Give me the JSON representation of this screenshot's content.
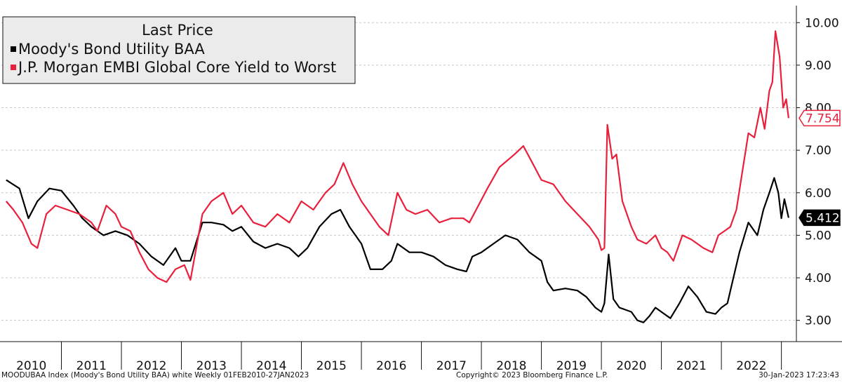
{
  "chart_data": {
    "type": "line",
    "title": "",
    "legend": {
      "title": "Last Price",
      "placement": "top-left"
    },
    "xlabel": "",
    "ylabel": "",
    "ylim": [
      2.5,
      10.4
    ],
    "yticks": [
      "3.00",
      "4.00",
      "5.00",
      "6.00",
      "7.00",
      "8.00",
      "9.00",
      "10.00"
    ],
    "xticks": [
      "2010",
      "2011",
      "2012",
      "2013",
      "2014",
      "2015",
      "2016",
      "2017",
      "2018",
      "2019",
      "2020",
      "2021",
      "2022"
    ],
    "xlim": [
      2010.0,
      2023.25
    ],
    "grid": "horizontal dashed",
    "series": [
      {
        "name": "Moody's Bond Utility BAA",
        "color": "#000000",
        "last_value": "5.412",
        "points": [
          [
            2010.08,
            6.3
          ],
          [
            2010.3,
            6.1
          ],
          [
            2010.45,
            5.4
          ],
          [
            2010.6,
            5.8
          ],
          [
            2010.8,
            6.1
          ],
          [
            2011.0,
            6.05
          ],
          [
            2011.2,
            5.7
          ],
          [
            2011.35,
            5.4
          ],
          [
            2011.5,
            5.2
          ],
          [
            2011.7,
            5.0
          ],
          [
            2011.9,
            5.1
          ],
          [
            2012.1,
            5.0
          ],
          [
            2012.3,
            4.8
          ],
          [
            2012.5,
            4.5
          ],
          [
            2012.7,
            4.3
          ],
          [
            2012.9,
            4.7
          ],
          [
            2013.0,
            4.4
          ],
          [
            2013.15,
            4.4
          ],
          [
            2013.35,
            5.3
          ],
          [
            2013.5,
            5.3
          ],
          [
            2013.7,
            5.25
          ],
          [
            2013.85,
            5.1
          ],
          [
            2014.0,
            5.2
          ],
          [
            2014.2,
            4.85
          ],
          [
            2014.4,
            4.7
          ],
          [
            2014.6,
            4.8
          ],
          [
            2014.8,
            4.7
          ],
          [
            2014.95,
            4.5
          ],
          [
            2015.1,
            4.7
          ],
          [
            2015.3,
            5.2
          ],
          [
            2015.5,
            5.5
          ],
          [
            2015.65,
            5.6
          ],
          [
            2015.8,
            5.2
          ],
          [
            2016.0,
            4.8
          ],
          [
            2016.15,
            4.2
          ],
          [
            2016.35,
            4.2
          ],
          [
            2016.5,
            4.4
          ],
          [
            2016.6,
            4.8
          ],
          [
            2016.8,
            4.6
          ],
          [
            2017.0,
            4.6
          ],
          [
            2017.2,
            4.5
          ],
          [
            2017.4,
            4.3
          ],
          [
            2017.6,
            4.2
          ],
          [
            2017.75,
            4.15
          ],
          [
            2017.85,
            4.5
          ],
          [
            2018.0,
            4.6
          ],
          [
            2018.2,
            4.8
          ],
          [
            2018.4,
            5.0
          ],
          [
            2018.6,
            4.9
          ],
          [
            2018.8,
            4.6
          ],
          [
            2019.0,
            4.4
          ],
          [
            2019.1,
            3.9
          ],
          [
            2019.2,
            3.7
          ],
          [
            2019.4,
            3.75
          ],
          [
            2019.6,
            3.7
          ],
          [
            2019.75,
            3.55
          ],
          [
            2019.9,
            3.3
          ],
          [
            2020.0,
            3.2
          ],
          [
            2020.05,
            3.4
          ],
          [
            2020.12,
            4.55
          ],
          [
            2020.2,
            3.5
          ],
          [
            2020.3,
            3.3
          ],
          [
            2020.5,
            3.2
          ],
          [
            2020.6,
            3.0
          ],
          [
            2020.7,
            2.95
          ],
          [
            2020.8,
            3.1
          ],
          [
            2020.9,
            3.3
          ],
          [
            2021.0,
            3.2
          ],
          [
            2021.15,
            3.05
          ],
          [
            2021.3,
            3.4
          ],
          [
            2021.45,
            3.8
          ],
          [
            2021.6,
            3.55
          ],
          [
            2021.75,
            3.2
          ],
          [
            2021.9,
            3.15
          ],
          [
            2022.0,
            3.3
          ],
          [
            2022.1,
            3.4
          ],
          [
            2022.2,
            4.0
          ],
          [
            2022.3,
            4.6
          ],
          [
            2022.45,
            5.3
          ],
          [
            2022.6,
            5.0
          ],
          [
            2022.7,
            5.6
          ],
          [
            2022.8,
            6.0
          ],
          [
            2022.88,
            6.35
          ],
          [
            2022.95,
            6.0
          ],
          [
            2023.0,
            5.4
          ],
          [
            2023.05,
            5.85
          ],
          [
            2023.12,
            5.412
          ]
        ]
      },
      {
        "name": "J.P. Morgan EMBI Global Core Yield to Worst",
        "color": "#e8203c",
        "last_value": "7.754",
        "points": [
          [
            2010.08,
            5.8
          ],
          [
            2010.2,
            5.6
          ],
          [
            2010.35,
            5.3
          ],
          [
            2010.5,
            4.8
          ],
          [
            2010.6,
            4.7
          ],
          [
            2010.75,
            5.5
          ],
          [
            2010.9,
            5.7
          ],
          [
            2011.1,
            5.6
          ],
          [
            2011.3,
            5.5
          ],
          [
            2011.5,
            5.3
          ],
          [
            2011.6,
            5.1
          ],
          [
            2011.75,
            5.7
          ],
          [
            2011.9,
            5.5
          ],
          [
            2012.0,
            5.2
          ],
          [
            2012.15,
            5.1
          ],
          [
            2012.3,
            4.6
          ],
          [
            2012.45,
            4.2
          ],
          [
            2012.6,
            4.0
          ],
          [
            2012.75,
            3.9
          ],
          [
            2012.9,
            4.2
          ],
          [
            2013.05,
            4.3
          ],
          [
            2013.15,
            3.95
          ],
          [
            2013.35,
            5.5
          ],
          [
            2013.5,
            5.8
          ],
          [
            2013.7,
            6.0
          ],
          [
            2013.85,
            5.5
          ],
          [
            2014.0,
            5.7
          ],
          [
            2014.2,
            5.3
          ],
          [
            2014.4,
            5.2
          ],
          [
            2014.6,
            5.5
          ],
          [
            2014.8,
            5.3
          ],
          [
            2015.0,
            5.8
          ],
          [
            2015.2,
            5.6
          ],
          [
            2015.4,
            6.0
          ],
          [
            2015.55,
            6.2
          ],
          [
            2015.7,
            6.7
          ],
          [
            2015.85,
            6.2
          ],
          [
            2016.0,
            5.8
          ],
          [
            2016.15,
            5.5
          ],
          [
            2016.3,
            5.2
          ],
          [
            2016.45,
            5.0
          ],
          [
            2016.6,
            6.0
          ],
          [
            2016.75,
            5.6
          ],
          [
            2016.9,
            5.5
          ],
          [
            2017.1,
            5.6
          ],
          [
            2017.3,
            5.3
          ],
          [
            2017.5,
            5.4
          ],
          [
            2017.7,
            5.4
          ],
          [
            2017.8,
            5.3
          ],
          [
            2017.95,
            5.7
          ],
          [
            2018.1,
            6.1
          ],
          [
            2018.3,
            6.6
          ],
          [
            2018.55,
            6.9
          ],
          [
            2018.7,
            7.1
          ],
          [
            2018.85,
            6.7
          ],
          [
            2019.0,
            6.3
          ],
          [
            2019.2,
            6.2
          ],
          [
            2019.4,
            5.8
          ],
          [
            2019.6,
            5.5
          ],
          [
            2019.8,
            5.2
          ],
          [
            2019.95,
            4.9
          ],
          [
            2020.0,
            4.65
          ],
          [
            2020.05,
            4.7
          ],
          [
            2020.1,
            7.6
          ],
          [
            2020.18,
            6.8
          ],
          [
            2020.25,
            6.9
          ],
          [
            2020.35,
            5.8
          ],
          [
            2020.5,
            5.2
          ],
          [
            2020.6,
            4.9
          ],
          [
            2020.75,
            4.8
          ],
          [
            2020.9,
            5.0
          ],
          [
            2021.0,
            4.7
          ],
          [
            2021.1,
            4.6
          ],
          [
            2021.2,
            4.4
          ],
          [
            2021.35,
            5.0
          ],
          [
            2021.5,
            4.9
          ],
          [
            2021.7,
            4.7
          ],
          [
            2021.85,
            4.6
          ],
          [
            2021.95,
            5.0
          ],
          [
            2022.05,
            5.1
          ],
          [
            2022.15,
            5.2
          ],
          [
            2022.25,
            5.6
          ],
          [
            2022.35,
            6.5
          ],
          [
            2022.45,
            7.4
          ],
          [
            2022.55,
            7.3
          ],
          [
            2022.65,
            8.0
          ],
          [
            2022.72,
            7.5
          ],
          [
            2022.8,
            8.4
          ],
          [
            2022.85,
            8.6
          ],
          [
            2022.9,
            9.8
          ],
          [
            2022.97,
            9.2
          ],
          [
            2023.03,
            8.0
          ],
          [
            2023.08,
            8.2
          ],
          [
            2023.12,
            7.754
          ]
        ]
      }
    ]
  },
  "footer": {
    "left": "MOODUBAA Index (Moody's Bond Utility BAA) white  Weekly 01FEB2010-27JAN2023",
    "center": "Copyright© 2023 Bloomberg Finance L.P.",
    "right": "30-Jan-2023 17:23:43"
  }
}
